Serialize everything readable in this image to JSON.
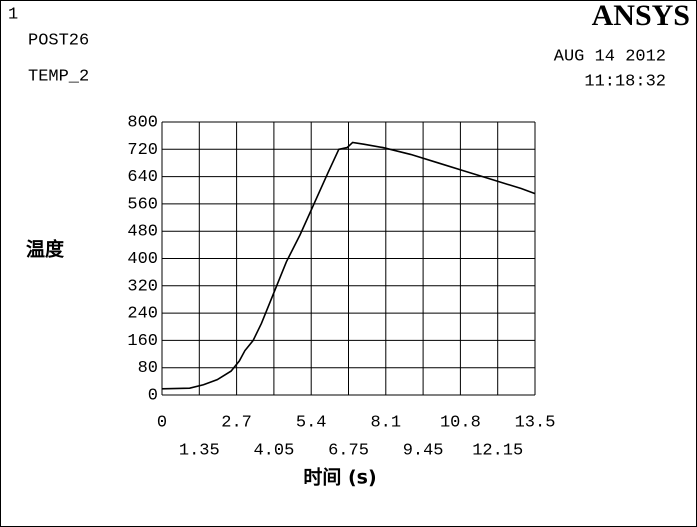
{
  "window_number": "1",
  "program": "POST26",
  "variable": "TEMP_2",
  "logo": "ANSYS",
  "date": "AUG 14 2012",
  "time": "11:18:32",
  "chart_data": {
    "type": "line",
    "xlabel": "时间 (s)",
    "ylabel": "温度",
    "x": [
      0,
      1,
      1.5,
      2,
      2.5,
      2.8,
      3.0,
      3.3,
      3.6,
      4,
      4.5,
      5,
      5.5,
      6,
      6.4,
      6.7,
      6.9,
      7.3,
      8,
      9,
      10,
      11,
      12,
      13,
      13.5
    ],
    "series": [
      {
        "name": "TEMP_2",
        "color": "#000000",
        "values": [
          18,
          20,
          30,
          45,
          70,
          100,
          130,
          160,
          210,
          290,
          390,
          470,
          560,
          650,
          720,
          725,
          740,
          735,
          725,
          705,
          680,
          655,
          630,
          605,
          590
        ]
      }
    ],
    "xlim": [
      0,
      13.5
    ],
    "xticks": [
      0,
      1.35,
      2.7,
      4.05,
      5.4,
      6.75,
      8.1,
      9.45,
      10.8,
      12.15,
      13.5
    ],
    "ylim": [
      0,
      800
    ],
    "yticks": [
      0,
      80,
      160,
      240,
      320,
      400,
      480,
      560,
      640,
      720,
      800
    ],
    "grid": true
  }
}
